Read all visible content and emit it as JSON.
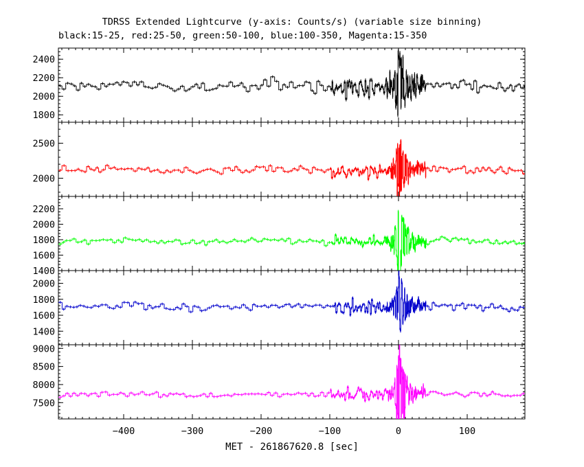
{
  "chart_data": {
    "type": "line",
    "title": "TDRSS Extended Lightcurve (y-axis: Counts/s) (variable size binning)",
    "subtitle": "black:15-25, red:25-50, green:50-100, blue:100-350, Magenta:15-350",
    "xlabel": "MET - 261867620.8 [sec]",
    "xlim": [
      -495,
      184
    ],
    "xticks": [
      -400,
      -300,
      -200,
      -100,
      0,
      100
    ],
    "panels": [
      {
        "name": "15-25",
        "color": "#000000",
        "ylim": [
          1720,
          2520
        ],
        "yticks": [
          1800,
          2000,
          2200,
          2400
        ],
        "baseline": 2110,
        "noise_coarse": 30,
        "burst": {
          "peak_time": 0,
          "amplitude": 380
        }
      },
      {
        "name": "25-50",
        "color": "#ff0000",
        "ylim": [
          1740,
          2800
        ],
        "yticks": [
          2000,
          2500
        ],
        "baseline": 2120,
        "noise_coarse": 25,
        "burst": {
          "peak_time": 0,
          "amplitude": 500
        }
      },
      {
        "name": "50-100",
        "color": "#00ff00",
        "ylim": [
          1400,
          2360
        ],
        "yticks": [
          1400,
          1600,
          1800,
          2000,
          2200
        ],
        "baseline": 1780,
        "noise_coarse": 20,
        "burst": {
          "peak_time": 0,
          "amplitude": 520
        }
      },
      {
        "name": "100-350",
        "color": "#0000cc",
        "ylim": [
          1230,
          2160
        ],
        "yticks": [
          1400,
          1600,
          1800,
          2000
        ],
        "baseline": 1710,
        "noise_coarse": 22,
        "burst": {
          "peak_time": 0,
          "amplitude": 420
        }
      },
      {
        "name": "15-350",
        "color": "#ff00ff",
        "ylim": [
          7050,
          9100
        ],
        "yticks": [
          7500,
          8000,
          8500,
          9000
        ],
        "baseline": 7730,
        "noise_coarse": 45,
        "burst": {
          "peak_time": 0,
          "amplitude": 1300
        }
      }
    ]
  }
}
